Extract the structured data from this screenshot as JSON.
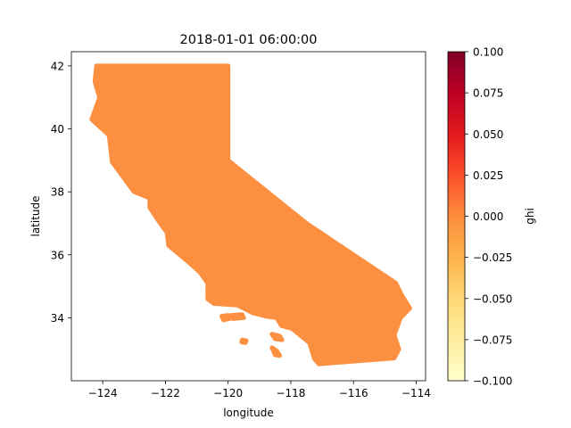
{
  "chart_data": {
    "type": "heatmap",
    "title": "2018-01-01 06:00:00",
    "xlabel": "longitude",
    "ylabel": "latitude",
    "xlim": [
      -125.0,
      -113.7
    ],
    "ylim": [
      32.0,
      42.45
    ],
    "x_ticks": [
      -124,
      -122,
      -120,
      -118,
      -116,
      -114
    ],
    "x_tick_labels": [
      "−124",
      "−122",
      "−120",
      "−118",
      "−116",
      "−114"
    ],
    "y_ticks": [
      34,
      36,
      38,
      40,
      42
    ],
    "y_tick_labels": [
      "34",
      "36",
      "38",
      "40",
      "42"
    ],
    "grid": false,
    "fill_value": 0.0,
    "fill_color": "#fd9040",
    "colorbar": {
      "label": "ghi",
      "min": -0.1,
      "max": 0.1,
      "ticks": [
        -0.1,
        -0.075,
        -0.05,
        -0.025,
        0.0,
        0.025,
        0.05,
        0.075,
        0.1
      ],
      "tick_labels": [
        "−0.100",
        "−0.075",
        "−0.050",
        "−0.025",
        "0.000",
        "0.025",
        "0.050",
        "0.075",
        "0.100"
      ],
      "colormap": "YlOrRd",
      "colors": [
        "#ffffcc",
        "#ffeda0",
        "#fed976",
        "#feb24c",
        "#fd8d3c",
        "#fc4e2a",
        "#e31a1c",
        "#bd0026",
        "#800026"
      ]
    },
    "regions": [
      {
        "name": "California",
        "points": [
          [
            -124.2,
            42.0
          ],
          [
            -120.0,
            42.0
          ],
          [
            -120.0,
            39.0
          ],
          [
            -117.5,
            37.0
          ],
          [
            -114.65,
            35.1
          ],
          [
            -114.45,
            34.7
          ],
          [
            -114.2,
            34.3
          ],
          [
            -114.5,
            34.0
          ],
          [
            -114.7,
            33.45
          ],
          [
            -114.55,
            33.0
          ],
          [
            -114.7,
            32.72
          ],
          [
            -116.0,
            32.62
          ],
          [
            -117.1,
            32.53
          ],
          [
            -117.25,
            32.7
          ],
          [
            -117.4,
            33.2
          ],
          [
            -117.95,
            33.65
          ],
          [
            -118.3,
            33.75
          ],
          [
            -118.45,
            34.0
          ],
          [
            -118.8,
            34.05
          ],
          [
            -119.2,
            34.15
          ],
          [
            -119.7,
            34.4
          ],
          [
            -120.45,
            34.45
          ],
          [
            -120.65,
            34.6
          ],
          [
            -120.65,
            35.1
          ],
          [
            -120.9,
            35.45
          ],
          [
            -121.3,
            35.8
          ],
          [
            -121.9,
            36.3
          ],
          [
            -121.95,
            36.7
          ],
          [
            -122.2,
            37.05
          ],
          [
            -122.5,
            37.5
          ],
          [
            -122.5,
            37.8
          ],
          [
            -123.0,
            38.0
          ],
          [
            -123.7,
            38.95
          ],
          [
            -123.8,
            39.8
          ],
          [
            -124.35,
            40.3
          ],
          [
            -124.1,
            41.0
          ],
          [
            -124.25,
            41.5
          ],
          [
            -124.2,
            42.0
          ]
        ]
      },
      {
        "name": "Santa Rosa Island",
        "points": [
          [
            -120.2,
            34.05
          ],
          [
            -120.0,
            34.08
          ],
          [
            -119.95,
            33.97
          ],
          [
            -120.15,
            33.93
          ]
        ]
      },
      {
        "name": "Santa Cruz Island",
        "points": [
          [
            -119.9,
            34.08
          ],
          [
            -119.55,
            34.1
          ],
          [
            -119.5,
            34.0
          ],
          [
            -119.85,
            33.97
          ]
        ]
      },
      {
        "name": "Santa Catalina Island",
        "points": [
          [
            -118.6,
            33.48
          ],
          [
            -118.35,
            33.42
          ],
          [
            -118.28,
            33.3
          ],
          [
            -118.5,
            33.33
          ]
        ]
      },
      {
        "name": "San Clemente Island",
        "points": [
          [
            -118.6,
            33.05
          ],
          [
            -118.45,
            32.95
          ],
          [
            -118.35,
            32.8
          ],
          [
            -118.5,
            32.82
          ]
        ]
      },
      {
        "name": "San Nicolas Island",
        "points": [
          [
            -119.55,
            33.3
          ],
          [
            -119.42,
            33.27
          ],
          [
            -119.45,
            33.21
          ],
          [
            -119.57,
            33.23
          ]
        ]
      }
    ]
  }
}
